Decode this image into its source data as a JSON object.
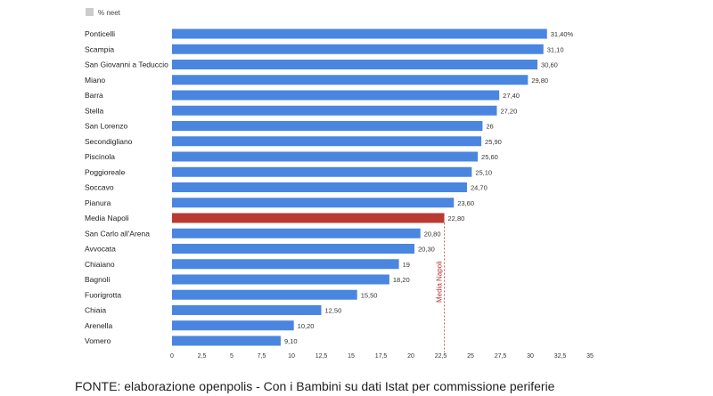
{
  "chart_data": {
    "type": "bar",
    "orientation": "horizontal",
    "legend": {
      "label": "% neet",
      "color": "#cccccc",
      "placement": "top-left"
    },
    "categories": [
      "Ponticelli",
      "Scampia",
      "San Giovanni a Teduccio",
      "Miano",
      "Barra",
      "Stella",
      "San Lorenzo",
      "Secondigliano",
      "Piscinola",
      "Poggioreale",
      "Soccavo",
      "Pianura",
      "Media Napoli",
      "San Carlo all'Arena",
      "Avvocata",
      "Chiaiano",
      "Bagnoli",
      "Fuorigrotta",
      "Chiaia",
      "Arenella",
      "Vomero"
    ],
    "values": [
      31.4,
      31.1,
      30.6,
      29.8,
      27.4,
      27.2,
      26,
      25.9,
      25.6,
      25.1,
      24.7,
      23.6,
      22.8,
      20.8,
      20.3,
      19,
      18.2,
      15.5,
      12.5,
      10.2,
      9.1
    ],
    "value_labels": [
      "31,40%",
      "31,10",
      "30,60",
      "29,80",
      "27,40",
      "27,20",
      "26",
      "25,90",
      "25,60",
      "25,10",
      "24,70",
      "23,60",
      "22,80",
      "20,80",
      "20,30",
      "19",
      "18,20",
      "15,50",
      "12,50",
      "10,20",
      "9,10"
    ],
    "highlight_category": "Media Napoli",
    "bar_color": "#4a86e0",
    "highlight_color": "#b93a32",
    "xlim": [
      0,
      35
    ],
    "xticks": [
      0,
      2.5,
      5,
      7.5,
      10,
      12.5,
      15,
      17.5,
      20,
      22.5,
      25,
      27.5,
      30,
      32.5,
      35
    ],
    "xtick_labels": [
      "0",
      "2,5",
      "5",
      "7,5",
      "10",
      "12,5",
      "15",
      "17,5",
      "20",
      "22,5",
      "25",
      "27,5",
      "30",
      "32,5",
      "35"
    ],
    "reference_line": {
      "value": 22.8,
      "label": "Media Napoli",
      "color": "#b93a32"
    },
    "grid": false
  },
  "caption": "FONTE: elaborazione openpolis - Con i Bambini su dati Istat per commissione periferie"
}
